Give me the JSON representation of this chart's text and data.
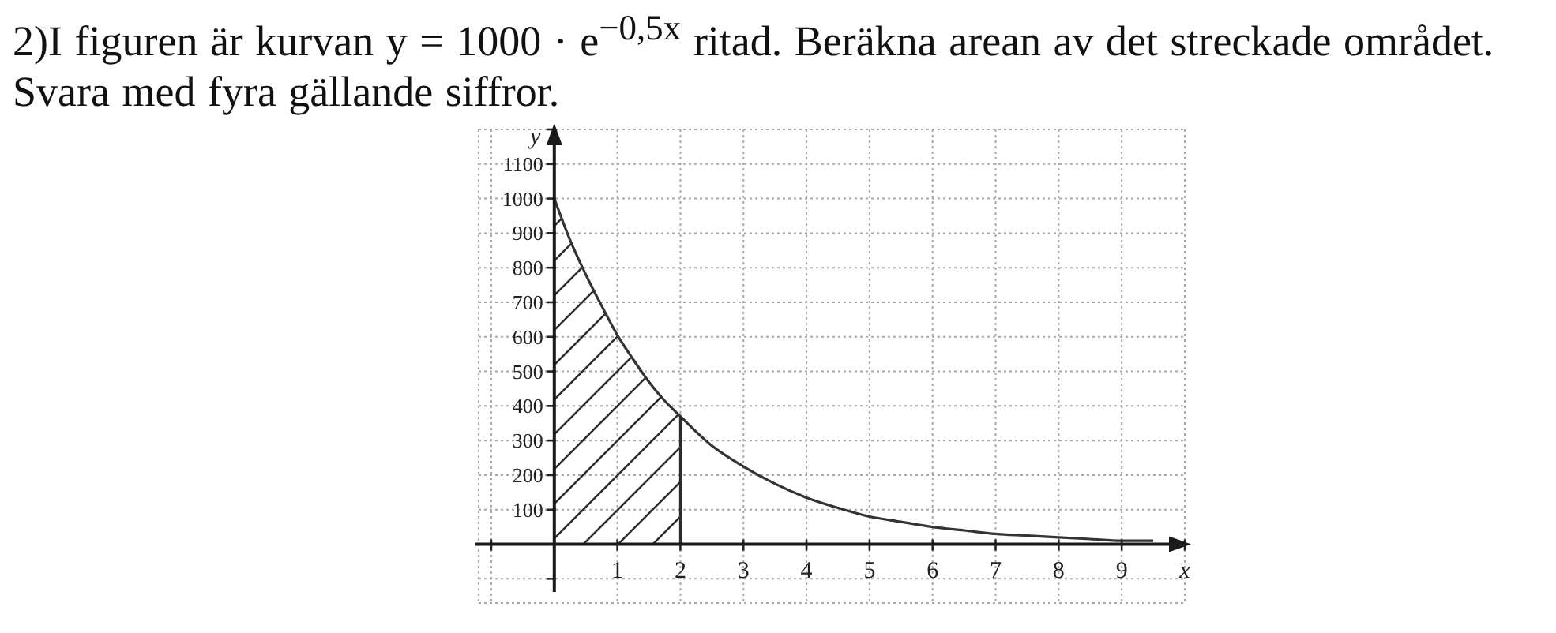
{
  "chart_data": {
    "type": "line",
    "title": "2)I figuren är kurvan y = 1000 · e$^{−0,5x}$ ritad. Beräkna arean av det streckade området. Svara med fyra gällande siffror.",
    "xlabel": "x",
    "ylabel": "y",
    "series": [
      {
        "type": "area",
        "color": "#2b2b2b",
        "x": [
          0,
          0.25,
          0.5,
          0.75,
          1,
          1.25,
          1.5,
          1.75,
          2
        ],
        "values": [
          1000,
          880,
          780,
          690,
          605,
          535,
          470,
          415,
          370
        ]
      },
      {
        "color": "#333333",
        "x": [
          0,
          0.25,
          0.5,
          0.75,
          1,
          1.25,
          1.5,
          1.75,
          2,
          2.5,
          3,
          3.5,
          4,
          4.5,
          5,
          5.5,
          6,
          6.5,
          7,
          7.5,
          8,
          8.5,
          9,
          9.5
        ],
        "values": [
          1000,
          880,
          780,
          690,
          605,
          535,
          470,
          415,
          370,
          285,
          225,
          175,
          135,
          105,
          80,
          65,
          50,
          40,
          30,
          25,
          20,
          15,
          10,
          10
        ]
      }
    ],
    "xlim": [
      -1.2,
      10
    ],
    "xticks": [
      {
        "value": -1,
        "label": null
      },
      1,
      2,
      3,
      4,
      5,
      6,
      7,
      8,
      9,
      {
        "value": 10,
        "label": null
      }
    ],
    "ylim": [
      -170,
      1200
    ],
    "yticks": [
      {
        "value": -100,
        "label": null
      },
      100,
      200,
      300,
      400,
      500,
      600,
      700,
      800,
      900,
      1000,
      1100,
      {
        "value": 1200,
        "label": null
      }
    ],
    "grid": true
  }
}
